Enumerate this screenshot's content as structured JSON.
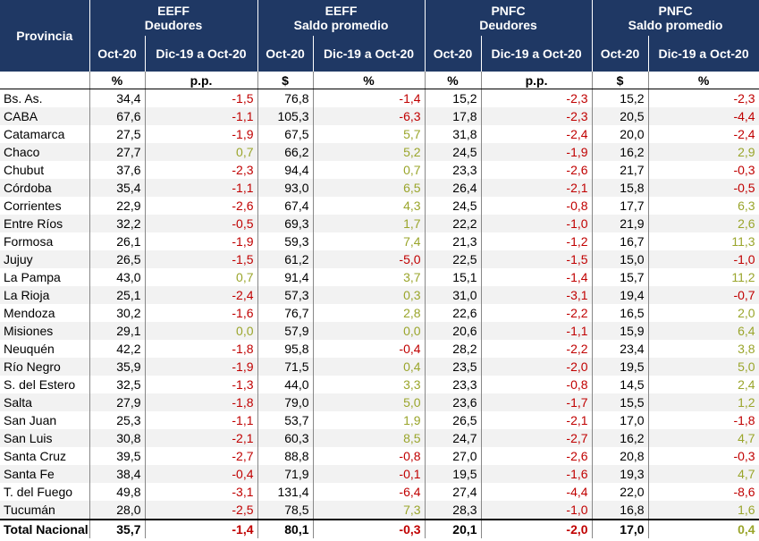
{
  "header": {
    "provincia": "Provincia",
    "groups": [
      {
        "title": "EEFF",
        "subtitle": "Deudores",
        "columns": [
          "Oct-20",
          "Dic-19 a Oct-20"
        ]
      },
      {
        "title": "EEFF",
        "subtitle": "Saldo promedio",
        "columns": [
          "Oct-20",
          "Dic-19 a Oct-20"
        ]
      },
      {
        "title": "PNFC",
        "subtitle": "Deudores",
        "columns": [
          "Oct-20",
          "Dic-19 a Oct-20"
        ]
      },
      {
        "title": "PNFC",
        "subtitle": "Saldo promedio",
        "columns": [
          "Oct-20",
          "Dic-19 a Oct-20"
        ]
      }
    ],
    "units": [
      "%",
      "p.p.",
      "$",
      "%",
      "%",
      "p.p.",
      "$",
      "%"
    ]
  },
  "table": {
    "rows": [
      [
        "Bs. As.",
        "34,4",
        "-1,5",
        "76,8",
        "-1,4",
        "15,2",
        "-2,3",
        "15,2",
        "-2,3"
      ],
      [
        "CABA",
        "67,6",
        "-1,1",
        "105,3",
        "-6,3",
        "17,8",
        "-2,3",
        "20,5",
        "-4,4"
      ],
      [
        "Catamarca",
        "27,5",
        "-1,9",
        "67,5",
        "5,7",
        "31,8",
        "-2,4",
        "20,0",
        "-2,4"
      ],
      [
        "Chaco",
        "27,7",
        "0,7",
        "66,2",
        "5,2",
        "24,5",
        "-1,9",
        "16,2",
        "2,9"
      ],
      [
        "Chubut",
        "37,6",
        "-2,3",
        "94,4",
        "0,7",
        "23,3",
        "-2,6",
        "21,7",
        "-0,3"
      ],
      [
        "Córdoba",
        "35,4",
        "-1,1",
        "93,0",
        "6,5",
        "26,4",
        "-2,1",
        "15,8",
        "-0,5"
      ],
      [
        "Corrientes",
        "22,9",
        "-2,6",
        "67,4",
        "4,3",
        "24,5",
        "-0,8",
        "17,7",
        "6,3"
      ],
      [
        "Entre Ríos",
        "32,2",
        "-0,5",
        "69,3",
        "1,7",
        "22,2",
        "-1,0",
        "21,9",
        "2,6"
      ],
      [
        "Formosa",
        "26,1",
        "-1,9",
        "59,3",
        "7,4",
        "21,3",
        "-1,2",
        "16,7",
        "11,3"
      ],
      [
        "Jujuy",
        "26,5",
        "-1,5",
        "61,2",
        "-5,0",
        "22,5",
        "-1,5",
        "15,0",
        "-1,0"
      ],
      [
        "La Pampa",
        "43,0",
        "0,7",
        "91,4",
        "3,7",
        "15,1",
        "-1,4",
        "15,7",
        "11,2"
      ],
      [
        "La Rioja",
        "25,1",
        "-2,4",
        "57,3",
        "0,3",
        "31,0",
        "-3,1",
        "19,4",
        "-0,7"
      ],
      [
        "Mendoza",
        "30,2",
        "-1,6",
        "76,7",
        "2,8",
        "22,6",
        "-2,2",
        "16,5",
        "2,0"
      ],
      [
        "Misiones",
        "29,1",
        "0,0",
        "57,9",
        "0,0",
        "20,6",
        "-1,1",
        "15,9",
        "6,4"
      ],
      [
        "Neuquén",
        "42,2",
        "-1,8",
        "95,8",
        "-0,4",
        "28,2",
        "-2,2",
        "23,4",
        "3,8"
      ],
      [
        "Río Negro",
        "35,9",
        "-1,9",
        "71,5",
        "0,4",
        "23,5",
        "-2,0",
        "19,5",
        "5,0"
      ],
      [
        "S. del Estero",
        "32,5",
        "-1,3",
        "44,0",
        "3,3",
        "23,3",
        "-0,8",
        "14,5",
        "2,4"
      ],
      [
        "Salta",
        "27,9",
        "-1,8",
        "79,0",
        "5,0",
        "23,6",
        "-1,7",
        "15,5",
        "1,2"
      ],
      [
        "San Juan",
        "25,3",
        "-1,1",
        "53,7",
        "1,9",
        "26,5",
        "-2,1",
        "17,0",
        "-1,8"
      ],
      [
        "San Luis",
        "30,8",
        "-2,1",
        "60,3",
        "8,5",
        "24,7",
        "-2,7",
        "16,2",
        "4,7"
      ],
      [
        "Santa Cruz",
        "39,5",
        "-2,7",
        "88,8",
        "-0,8",
        "27,0",
        "-2,6",
        "20,8",
        "-0,3"
      ],
      [
        "Santa Fe",
        "38,4",
        "-0,4",
        "71,9",
        "-0,1",
        "19,5",
        "-1,6",
        "19,3",
        "4,7"
      ],
      [
        "T. del Fuego",
        "49,8",
        "-3,1",
        "131,4",
        "-6,4",
        "27,4",
        "-4,4",
        "22,0",
        "-8,6"
      ],
      [
        "Tucumán",
        "28,0",
        "-2,5",
        "78,5",
        "7,3",
        "28,3",
        "-1,0",
        "16,8",
        "1,6"
      ]
    ],
    "total": [
      "Total Nacional",
      "35,7",
      "-1,4",
      "80,1",
      "-0,3",
      "20,1",
      "-2,0",
      "17,0",
      "0,4"
    ]
  }
}
